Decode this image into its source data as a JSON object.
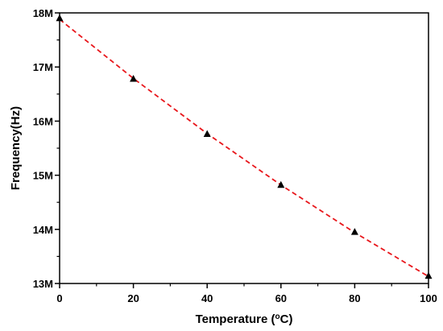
{
  "chart_data": {
    "type": "scatter",
    "title": "",
    "xlabel": "Temperature",
    "xlabel_unit_open": " (",
    "xlabel_unit_sup": "o",
    "xlabel_unit_rest": "C)",
    "ylabel": "Frequency(Hz)",
    "xlim": [
      0,
      100
    ],
    "ylim": [
      13000000,
      18000000
    ],
    "x_ticks": [
      0,
      20,
      40,
      60,
      80,
      100
    ],
    "x_tick_labels": [
      "0",
      "20",
      "40",
      "60",
      "80",
      "100"
    ],
    "y_ticks": [
      13000000,
      14000000,
      15000000,
      16000000,
      17000000,
      18000000
    ],
    "y_tick_labels": [
      "13M",
      "14M",
      "15M",
      "16M",
      "17M",
      "18M"
    ],
    "grid": false,
    "series": [
      {
        "marker": "triangle",
        "color": "#000000",
        "x": [
          0,
          20,
          40,
          60,
          80,
          100
        ],
        "y": [
          17900000,
          16780000,
          15760000,
          14820000,
          13950000,
          13140000
        ]
      }
    ],
    "fit_line": {
      "style": "dashed",
      "color": "#e8161b",
      "x": [
        0,
        20,
        40,
        60,
        80,
        100
      ],
      "y": [
        17880000,
        16790000,
        15770000,
        14820000,
        13940000,
        13130000
      ]
    }
  }
}
